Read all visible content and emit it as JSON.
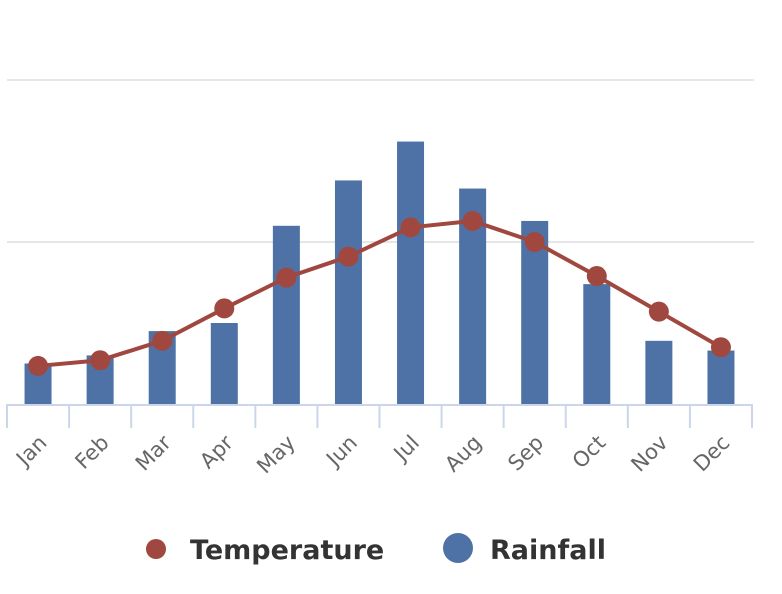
{
  "chart_data": {
    "type": "bar",
    "title": "",
    "xlabel": "",
    "ylabel": "",
    "categories": [
      "Jan",
      "Feb",
      "Mar",
      "Apr",
      "May",
      "Jun",
      "Jul",
      "Aug",
      "Sep",
      "Oct",
      "Nov",
      "Dec"
    ],
    "ylim": [
      0,
      200
    ],
    "gridlines": [
      100,
      200
    ],
    "grid": true,
    "legend_position": "bottom",
    "series": [
      {
        "name": "Temperature",
        "type": "line",
        "color": "#A0483F",
        "values": [
          23.5,
          27,
          39,
          59,
          78,
          91,
          109,
          113,
          100,
          79,
          57,
          35
        ]
      },
      {
        "name": "Rainfall",
        "type": "bar",
        "color": "#4E72A6",
        "values": [
          25,
          30,
          45,
          50,
          110,
          138,
          162,
          133,
          113,
          74,
          39,
          33
        ]
      }
    ]
  }
}
